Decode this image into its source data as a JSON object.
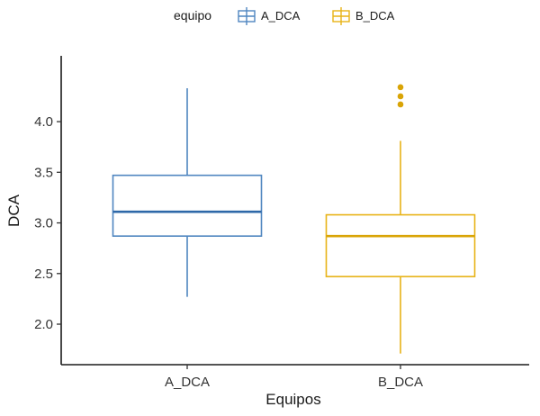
{
  "chart_data": {
    "type": "boxplot",
    "xlabel": "Equipos",
    "ylabel": "DCA",
    "ylim": [
      1.6,
      4.65
    ],
    "y_ticks": [
      "2.0",
      "2.5",
      "3.0",
      "3.5",
      "4.0"
    ],
    "categories": [
      "A_DCA",
      "B_DCA"
    ],
    "grid": false,
    "legend": {
      "title": "equipo",
      "position": "top",
      "entries": [
        "A_DCA",
        "B_DCA"
      ]
    },
    "series": [
      {
        "name": "A_DCA",
        "color": "#4f86c0",
        "median_color": "#2e68a8",
        "whisker_low": 2.27,
        "q1": 2.87,
        "median": 3.11,
        "q3": 3.47,
        "whisker_high": 4.33,
        "outliers": []
      },
      {
        "name": "B_DCA",
        "color": "#e8b317",
        "median_color": "#d9a406",
        "whisker_low": 1.71,
        "q1": 2.47,
        "median": 2.87,
        "q3": 3.08,
        "whisker_high": 3.81,
        "outliers": [
          4.34,
          4.25,
          4.17
        ]
      }
    ]
  }
}
